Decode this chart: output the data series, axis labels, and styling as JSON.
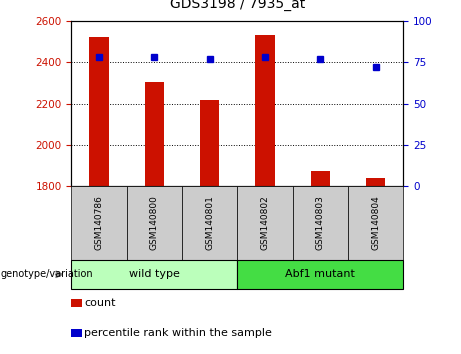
{
  "title": "GDS3198 / 7935_at",
  "samples": [
    "GSM140786",
    "GSM140800",
    "GSM140801",
    "GSM140802",
    "GSM140803",
    "GSM140804"
  ],
  "counts": [
    2525,
    2305,
    2215,
    2535,
    1870,
    1840
  ],
  "percentile_ranks": [
    78,
    78,
    77,
    78,
    77,
    72
  ],
  "ylim_left": [
    1800,
    2600
  ],
  "ylim_right": [
    0,
    100
  ],
  "yticks_left": [
    1800,
    2000,
    2200,
    2400,
    2600
  ],
  "yticks_right": [
    0,
    25,
    50,
    75,
    100
  ],
  "bar_color": "#cc1100",
  "dot_color": "#0000cc",
  "bar_width": 0.35,
  "groups": [
    {
      "label": "wild type",
      "indices": [
        0,
        1,
        2
      ],
      "color": "#bbffbb"
    },
    {
      "label": "Abf1 mutant",
      "indices": [
        3,
        4,
        5
      ],
      "color": "#44dd44"
    }
  ],
  "xtick_bg_color": "#cccccc",
  "group_row_label": "genotype/variation",
  "legend_count_label": "count",
  "legend_pct_label": "percentile rank within the sample",
  "tick_color_left": "#cc1100",
  "tick_color_right": "#0000cc",
  "grid_color": "#000000",
  "bg_color": "#ffffff",
  "plot_bg_color": "#ffffff"
}
